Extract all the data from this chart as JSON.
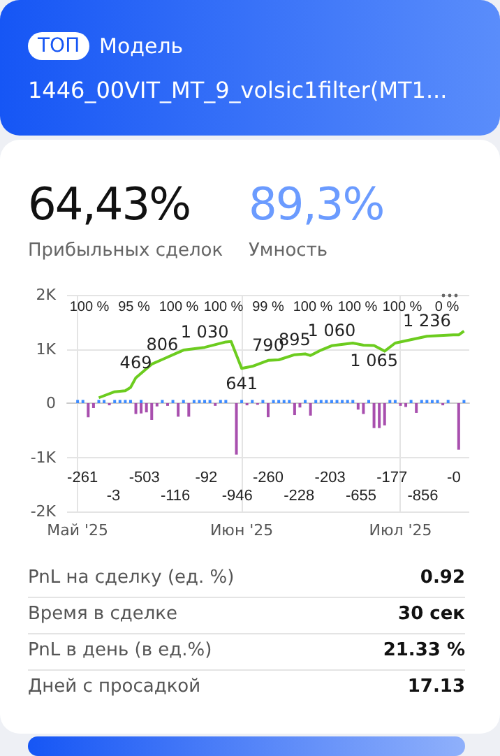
{
  "chart_data": {
    "type": "bar",
    "title": "1446_00VIT_MT_9_volsic1filter(MT1...",
    "subtitle": "Модель",
    "annotations": [
      "ТОП",
      "64,43%",
      "Прибыльных сделок",
      "89,3%",
      "Умность",
      "PnL на сделку (ед. %)",
      "0.92",
      "Время в сделке",
      "30 сек",
      "PnL в день (в ед.%)",
      "21.33 %",
      "Дней с просадкой",
      "17.13",
      "100 %",
      "95 %",
      "100 %",
      "100 %",
      "99 %",
      "100 %",
      "100 %",
      "100 %",
      "0 %",
      "-261",
      "-3",
      "-503",
      "-116",
      "-92",
      "-946",
      "-260",
      "-228",
      "-203",
      "-655",
      "-177",
      "-856",
      "-0"
    ],
    "xlim": [
      "2025-04-29",
      "2025-07-14"
    ],
    "xticks": [
      {
        "value": "2025-05-01",
        "label": "Май '25"
      },
      {
        "value": "2025-06-01",
        "label": "Июн '25"
      },
      {
        "value": "2025-07-01",
        "label": "Июл '25"
      }
    ],
    "ylim": [
      -2000,
      2000
    ],
    "yticks": [
      {
        "value": -2000,
        "label": "-2K"
      },
      {
        "value": -1000,
        "label": "-1K"
      },
      0,
      {
        "value": 1000,
        "label": "1K"
      },
      {
        "value": 2000,
        "label": "2K"
      }
    ],
    "grid": true,
    "marker": "none",
    "series": [
      {
        "color": "#3d8bff",
        "x": [
          "2025-05-01",
          "2025-05-02",
          "2025-05-05",
          "2025-05-06",
          "2025-05-08",
          "2025-05-09",
          "2025-05-10",
          "2025-05-11",
          "2025-05-13",
          "2025-05-17",
          "2025-05-19",
          "2025-05-21",
          "2025-05-23",
          "2025-05-24",
          "2025-05-25",
          "2025-05-26",
          "2025-05-28",
          "2025-05-29",
          "2025-06-01",
          "2025-06-03",
          "2025-06-05",
          "2025-06-07",
          "2025-06-08",
          "2025-06-09",
          "2025-06-10",
          "2025-06-13",
          "2025-06-15",
          "2025-06-16",
          "2025-06-17",
          "2025-06-18",
          "2025-06-19",
          "2025-06-20",
          "2025-06-21",
          "2025-06-22",
          "2025-06-25",
          "2025-06-29",
          "2025-06-30",
          "2025-07-03",
          "2025-07-05",
          "2025-07-06",
          "2025-07-07",
          "2025-07-08",
          "2025-07-10",
          "2025-07-13"
        ],
        "values": [
          60,
          60,
          60,
          60,
          60,
          60,
          60,
          60,
          60,
          60,
          60,
          60,
          60,
          60,
          60,
          60,
          60,
          60,
          60,
          60,
          60,
          60,
          60,
          60,
          60,
          60,
          60,
          60,
          60,
          60,
          60,
          60,
          60,
          60,
          60,
          60,
          60,
          60,
          60,
          60,
          60,
          60,
          60,
          60
        ]
      },
      {
        "color": "#a84fae",
        "x": [
          "2025-05-03",
          "2025-05-04",
          "2025-05-07",
          "2025-05-12",
          "2025-05-13",
          "2025-05-14",
          "2025-05-15",
          "2025-05-16",
          "2025-05-18",
          "2025-05-20",
          "2025-05-22",
          "2025-05-27",
          "2025-05-31",
          "2025-06-02",
          "2025-06-04",
          "2025-06-06",
          "2025-06-11",
          "2025-06-12",
          "2025-06-14",
          "2025-06-23",
          "2025-06-24",
          "2025-06-26",
          "2025-06-27",
          "2025-06-28",
          "2025-07-01",
          "2025-07-02",
          "2025-07-04",
          "2025-07-09",
          "2025-07-12"
        ],
        "values": [
          -260,
          -90,
          -40,
          -200,
          -190,
          -170,
          -310,
          -60,
          -50,
          -250,
          -250,
          -50,
          -950,
          -40,
          -30,
          -260,
          -220,
          -80,
          -230,
          -120,
          -200,
          -460,
          -460,
          -410,
          -50,
          -70,
          -180,
          -40,
          -860
        ]
      },
      {
        "type": "line",
        "color": "#6ccc1f",
        "x": [
          "2025-05-05",
          "2025-05-08",
          "2025-05-10",
          "2025-05-11",
          "2025-05-12",
          "2025-05-15",
          "2025-05-17",
          "2025-05-21",
          "2025-05-25",
          "2025-05-29",
          "2025-05-30",
          "2025-06-01",
          "2025-06-03",
          "2025-06-06",
          "2025-06-08",
          "2025-06-11",
          "2025-06-13",
          "2025-06-14",
          "2025-06-16",
          "2025-06-18",
          "2025-06-22",
          "2025-06-24",
          "2025-06-26",
          "2025-06-28",
          "2025-06-30",
          "2025-07-06",
          "2025-07-11",
          "2025-07-12",
          "2025-07-13"
        ],
        "values": [
          100,
          210,
          230,
          290,
          469,
          720,
          806,
          980,
          1030,
          1130,
          1140,
          641,
          680,
          790,
          800,
          895,
          910,
          880,
          980,
          1060,
          1110,
          1070,
          1065,
          960,
          1110,
          1236,
          1260,
          1260,
          1330
        ],
        "value_labels": [
          null,
          null,
          null,
          null,
          "469",
          null,
          "806",
          null,
          "1 030",
          null,
          null,
          "641",
          null,
          "790",
          null,
          "895",
          null,
          null,
          null,
          "1 060",
          null,
          null,
          "1 065",
          null,
          null,
          "1 236",
          null,
          null,
          null
        ]
      }
    ]
  }
}
